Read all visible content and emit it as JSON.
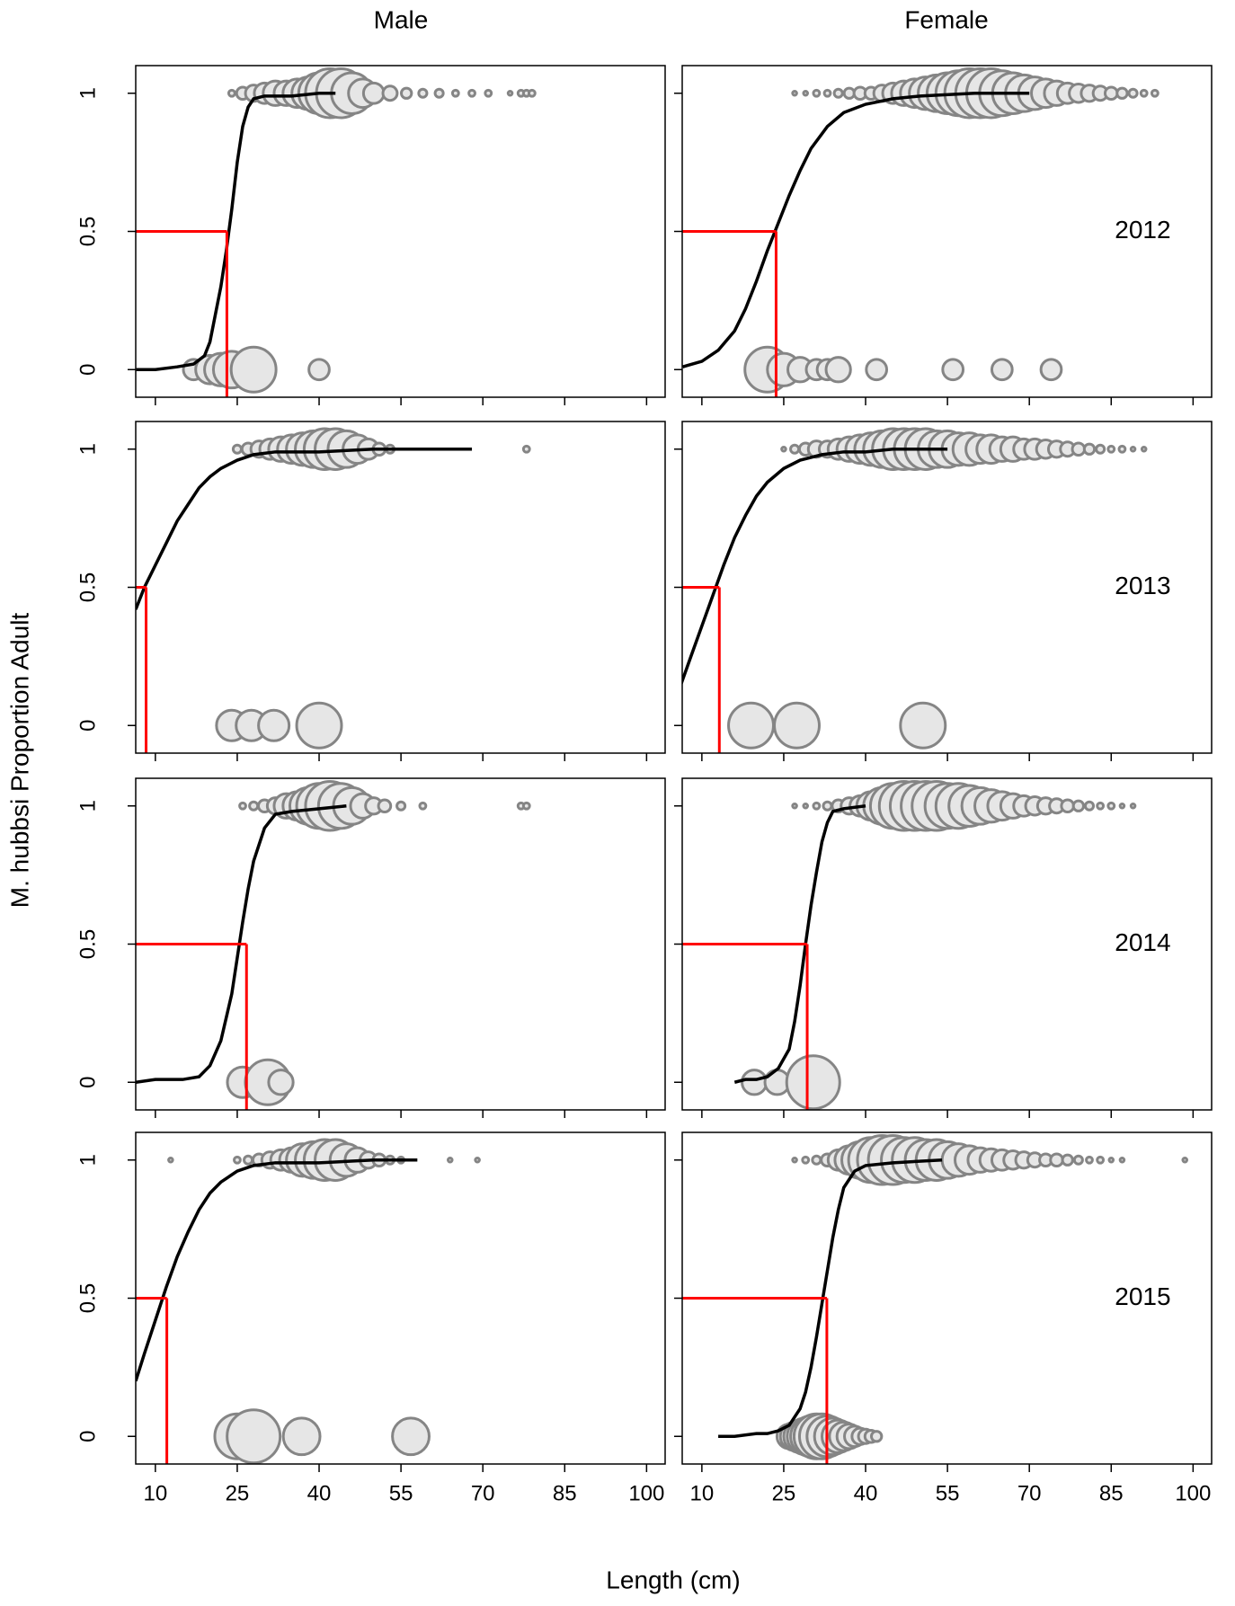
{
  "columns": [
    "Male",
    "Female"
  ],
  "y_label": "M. hubbsi  Proportion  Adult",
  "x_label": "Length  (cm)",
  "style": {
    "fill_color": "#e6e6e6",
    "edge_color": "#858585",
    "curve_color": "#000000",
    "l50_color": "#ff0000"
  },
  "chart_data": [
    {
      "type": "bubble",
      "xlim": [
        6.4,
        103.4
      ],
      "xticks": [
        10,
        25,
        40,
        55,
        70,
        85,
        100
      ],
      "ylim": [
        -0.1,
        1.1
      ],
      "yticks": [
        0,
        0.5,
        1
      ],
      "adult_y": 1,
      "adult_x": [
        24,
        26,
        28,
        30,
        32,
        34,
        36,
        38,
        40,
        42,
        44,
        46,
        48,
        50,
        53,
        56,
        59,
        62,
        65,
        68,
        71,
        75,
        77,
        78,
        79
      ],
      "adult_size": [
        3,
        6,
        8,
        10,
        12,
        12,
        14,
        16,
        20,
        24,
        24,
        20,
        14,
        10,
        7,
        5,
        4,
        4,
        3,
        3,
        3,
        2,
        3,
        3,
        3
      ],
      "juvenile_y": 0,
      "juvenile_x": [
        17,
        20,
        22,
        24,
        28,
        40
      ],
      "juvenile_size": [
        10,
        14,
        16,
        18,
        22,
        10
      ],
      "curve_x": [
        6.5,
        10,
        14,
        17,
        19,
        20,
        21,
        22,
        23,
        24,
        25,
        26,
        27,
        28,
        30,
        35,
        40,
        43
      ],
      "curve_y": [
        0,
        0,
        0.01,
        0.02,
        0.05,
        0.1,
        0.2,
        0.3,
        0.43,
        0.58,
        0.75,
        0.88,
        0.95,
        0.98,
        0.99,
        0.99,
        1,
        1
      ],
      "l50_x": 23.1,
      "l50_y": 0.5
    },
    {
      "type": "bubble",
      "annotation": "2012",
      "xlim": [
        6.4,
        103.4
      ],
      "xticks": [
        10,
        25,
        40,
        55,
        70,
        85,
        100
      ],
      "ylim": [
        -0.1,
        1.1
      ],
      "yticks": [
        0,
        0.5,
        1
      ],
      "adult_y": 1,
      "adult_x": [
        27,
        29,
        31,
        33,
        35,
        37,
        39,
        41,
        43,
        45,
        47,
        49,
        51,
        53,
        55,
        57,
        59,
        61,
        63,
        65,
        67,
        69,
        71,
        73,
        75,
        77,
        79,
        81,
        83,
        85,
        87,
        89,
        91,
        93
      ],
      "adult_size": [
        2,
        2,
        3,
        3,
        4,
        5,
        6,
        6,
        8,
        10,
        12,
        14,
        16,
        18,
        20,
        22,
        24,
        24,
        24,
        22,
        20,
        18,
        16,
        14,
        12,
        10,
        9,
        8,
        7,
        6,
        5,
        4,
        3,
        3
      ],
      "juvenile_y": 0,
      "juvenile_x": [
        22,
        25,
        28,
        31,
        33,
        35,
        42,
        56,
        65,
        74
      ],
      "juvenile_size": [
        22,
        16,
        12,
        10,
        10,
        12,
        10,
        10,
        10,
        10
      ],
      "curve_x": [
        6.5,
        10,
        13,
        16,
        18,
        20,
        22,
        24,
        26,
        28,
        30,
        33,
        36,
        40,
        45,
        50,
        60,
        70
      ],
      "curve_y": [
        0.01,
        0.03,
        0.07,
        0.14,
        0.22,
        0.32,
        0.43,
        0.53,
        0.63,
        0.72,
        0.8,
        0.88,
        0.93,
        0.96,
        0.98,
        0.99,
        1,
        1
      ],
      "l50_x": 23.6,
      "l50_y": 0.5
    },
    {
      "type": "bubble",
      "xlim": [
        6.4,
        103.4
      ],
      "xticks": [
        10,
        25,
        40,
        55,
        70,
        85,
        100
      ],
      "ylim": [
        -0.1,
        1.1
      ],
      "yticks": [
        0,
        0.5,
        1
      ],
      "adult_y": 1,
      "adult_x": [
        25,
        27,
        29,
        31,
        33,
        35,
        37,
        39,
        41,
        43,
        45,
        47,
        49,
        51,
        53,
        78
      ],
      "adult_size": [
        4,
        6,
        8,
        10,
        12,
        14,
        16,
        18,
        20,
        20,
        18,
        14,
        10,
        6,
        4,
        3
      ],
      "juvenile_y": 0,
      "juvenile_x": [
        24,
        27.6,
        31.7,
        40
      ],
      "juvenile_size": [
        15,
        15,
        15,
        22
      ],
      "curve_x": [
        6.4,
        8,
        10,
        12,
        14,
        16,
        18,
        20,
        22,
        25,
        28,
        32,
        36,
        40,
        50,
        60,
        68
      ],
      "curve_y": [
        0.42,
        0.5,
        0.58,
        0.66,
        0.74,
        0.8,
        0.86,
        0.9,
        0.93,
        0.96,
        0.98,
        0.99,
        0.99,
        0.99,
        1,
        1,
        1
      ],
      "l50_x": 8.3,
      "l50_y": 0.5
    },
    {
      "type": "bubble",
      "annotation": "2013",
      "xlim": [
        6.4,
        103.4
      ],
      "xticks": [
        10,
        25,
        40,
        55,
        70,
        85,
        100
      ],
      "ylim": [
        -0.1,
        1.1
      ],
      "yticks": [
        0,
        0.5,
        1
      ],
      "adult_y": 1,
      "adult_x": [
        25,
        27,
        29,
        31,
        33,
        35,
        37,
        39,
        41,
        43,
        45,
        47,
        49,
        51,
        53,
        55,
        57,
        59,
        61,
        63,
        65,
        67,
        69,
        71,
        73,
        75,
        77,
        79,
        81,
        83,
        85,
        87,
        89,
        91
      ],
      "adult_size": [
        2,
        4,
        6,
        8,
        8,
        10,
        12,
        14,
        16,
        18,
        20,
        20,
        20,
        20,
        18,
        18,
        16,
        16,
        14,
        14,
        12,
        12,
        10,
        10,
        9,
        8,
        7,
        6,
        5,
        4,
        3,
        3,
        2,
        2
      ],
      "juvenile_y": 0,
      "juvenile_x": [
        19,
        27.4,
        50.5
      ],
      "juvenile_size": [
        22,
        22,
        22
      ],
      "curve_x": [
        6.2,
        8,
        10,
        12,
        14,
        16,
        18,
        20,
        22,
        25,
        28,
        32,
        36,
        40,
        45,
        50,
        55
      ],
      "curve_y": [
        0.15,
        0.25,
        0.36,
        0.47,
        0.58,
        0.68,
        0.76,
        0.83,
        0.88,
        0.93,
        0.96,
        0.98,
        0.99,
        0.99,
        1,
        1,
        1
      ],
      "l50_x": 13.2,
      "l50_y": 0.5
    },
    {
      "type": "bubble",
      "xlim": [
        6.4,
        103.4
      ],
      "xticks": [
        10,
        25,
        40,
        55,
        70,
        85,
        100
      ],
      "ylim": [
        -0.1,
        1.1
      ],
      "yticks": [
        0,
        0.5,
        1
      ],
      "adult_y": 1,
      "adult_x": [
        26,
        28,
        30,
        32,
        34,
        36,
        38,
        40,
        42,
        44,
        46,
        48,
        50,
        52,
        55,
        59,
        77,
        78
      ],
      "adult_size": [
        3,
        4,
        6,
        8,
        12,
        14,
        18,
        22,
        24,
        22,
        18,
        12,
        8,
        6,
        4,
        3,
        3,
        3
      ],
      "juvenile_y": 0,
      "juvenile_x": [
        26,
        30.6,
        33
      ],
      "juvenile_size": [
        15,
        22,
        12
      ],
      "curve_x": [
        6.4,
        10,
        15,
        18,
        20,
        22,
        24,
        25,
        26,
        27,
        28,
        30,
        32,
        35,
        40,
        45
      ],
      "curve_y": [
        0,
        0.01,
        0.01,
        0.02,
        0.06,
        0.15,
        0.32,
        0.45,
        0.58,
        0.7,
        0.8,
        0.92,
        0.97,
        0.98,
        0.99,
        1
      ],
      "l50_x": 26.7,
      "l50_y": 0.5
    },
    {
      "type": "bubble",
      "annotation": "2014",
      "xlim": [
        6.4,
        103.4
      ],
      "xticks": [
        10,
        25,
        40,
        55,
        70,
        85,
        100
      ],
      "ylim": [
        -0.1,
        1.1
      ],
      "yticks": [
        0,
        0.5,
        1
      ],
      "adult_y": 1,
      "adult_x": [
        27,
        29,
        31,
        33,
        35,
        37,
        39,
        41,
        43,
        45,
        47,
        49,
        51,
        53,
        55,
        57,
        59,
        61,
        63,
        65,
        67,
        69,
        71,
        73,
        75,
        77,
        79,
        81,
        83,
        85,
        87,
        89
      ],
      "adult_size": [
        2,
        2,
        3,
        4,
        6,
        8,
        10,
        14,
        18,
        22,
        24,
        24,
        24,
        24,
        22,
        22,
        20,
        18,
        16,
        14,
        12,
        10,
        9,
        8,
        7,
        6,
        5,
        4,
        3,
        3,
        2,
        2
      ],
      "juvenile_y": 0,
      "juvenile_x": [
        19.6,
        23.8,
        30.4
      ],
      "juvenile_size": [
        12,
        12,
        26
      ],
      "curve_x": [
        16,
        18,
        20,
        22,
        24,
        26,
        27,
        28,
        29,
        30,
        31,
        32,
        33,
        34,
        36,
        40
      ],
      "curve_y": [
        0,
        0.01,
        0.01,
        0.02,
        0.05,
        0.12,
        0.22,
        0.35,
        0.5,
        0.64,
        0.76,
        0.87,
        0.94,
        0.98,
        0.99,
        1
      ],
      "l50_x": 29.3,
      "l50_y": 0.5
    },
    {
      "type": "bubble",
      "xlim": [
        6.4,
        103.4
      ],
      "xticks": [
        10,
        25,
        40,
        55,
        70,
        85,
        100
      ],
      "ylim": [
        -0.1,
        1.1
      ],
      "yticks": [
        0,
        0.5,
        1
      ],
      "adult_y": 1,
      "adult_x": [
        12.8,
        25,
        27,
        29,
        31,
        33,
        35,
        37,
        39,
        41,
        43,
        45,
        47,
        49,
        51,
        53,
        55,
        64,
        69
      ],
      "adult_size": [
        2,
        3,
        4,
        6,
        8,
        10,
        12,
        16,
        18,
        20,
        20,
        16,
        12,
        8,
        6,
        4,
        3,
        2,
        2
      ],
      "juvenile_y": 0,
      "juvenile_x": [
        25,
        28,
        36.8,
        56.8
      ],
      "juvenile_size": [
        22,
        26,
        18,
        18
      ],
      "curve_x": [
        6.4,
        8,
        10,
        12,
        14,
        16,
        18,
        20,
        22,
        25,
        28,
        32,
        36,
        40,
        50,
        58
      ],
      "curve_y": [
        0.2,
        0.3,
        0.42,
        0.54,
        0.65,
        0.74,
        0.82,
        0.88,
        0.92,
        0.96,
        0.98,
        0.99,
        0.99,
        0.99,
        1,
        1
      ],
      "l50_x": 12.1,
      "l50_y": 0.5
    },
    {
      "type": "bubble",
      "annotation": "2015",
      "xlim": [
        6.4,
        103.4
      ],
      "xticks": [
        10,
        25,
        40,
        55,
        70,
        85,
        100
      ],
      "ylim": [
        -0.1,
        1.1
      ],
      "yticks": [
        0,
        0.5,
        1
      ],
      "adult_y": 1,
      "adult_x": [
        27,
        29,
        31,
        33,
        35,
        37,
        39,
        41,
        43,
        45,
        47,
        49,
        51,
        53,
        55,
        57,
        59,
        61,
        63,
        65,
        67,
        69,
        71,
        73,
        75,
        77,
        79,
        81,
        83,
        85,
        87,
        98.5
      ],
      "adult_size": [
        2,
        3,
        4,
        6,
        10,
        14,
        18,
        22,
        24,
        24,
        22,
        22,
        20,
        20,
        18,
        16,
        14,
        12,
        11,
        10,
        9,
        8,
        7,
        6,
        6,
        5,
        4,
        3,
        3,
        2,
        2,
        2
      ],
      "juvenile_y": 0,
      "juvenile_x": [
        26,
        27,
        28,
        29,
        30,
        31,
        32,
        33,
        34,
        35,
        36,
        37,
        38,
        39,
        40,
        41,
        42
      ],
      "juvenile_size": [
        12,
        14,
        16,
        18,
        20,
        22,
        22,
        20,
        18,
        16,
        14,
        12,
        10,
        8,
        7,
        6,
        5
      ],
      "curve_x": [
        13,
        16,
        20,
        22,
        24,
        26,
        28,
        29,
        30,
        31,
        32,
        33,
        34,
        35,
        36,
        38,
        40,
        45,
        54
      ],
      "curve_y": [
        0,
        0,
        0.01,
        0.01,
        0.02,
        0.04,
        0.1,
        0.16,
        0.25,
        0.36,
        0.48,
        0.6,
        0.72,
        0.82,
        0.9,
        0.96,
        0.98,
        0.99,
        1
      ],
      "l50_x": 32.9,
      "l50_y": 0.5
    }
  ]
}
